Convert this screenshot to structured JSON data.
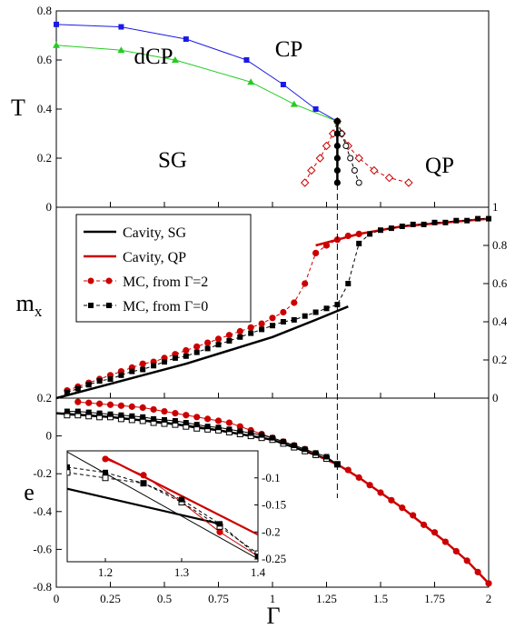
{
  "chart_data": [
    {
      "id": "phase",
      "type": "line",
      "ylabel": "T",
      "xlim": [
        0,
        2
      ],
      "ylim": [
        0,
        0.8
      ],
      "yticks": [
        "0",
        "0.2",
        "0.4",
        "0.6",
        "0.8"
      ],
      "region_labels": [
        "CP",
        "dCP",
        "SG",
        "QP"
      ],
      "series": [
        {
          "key": "blue",
          "color": "#1a1ae6",
          "marker": "square-filled",
          "line": "solid",
          "x": [
            0.0,
            0.3,
            0.6,
            0.88,
            1.05,
            1.2,
            1.3
          ],
          "y": [
            0.745,
            0.735,
            0.685,
            0.6,
            0.5,
            0.4,
            0.35
          ]
        },
        {
          "key": "green",
          "color": "#22cc22",
          "marker": "triangle-filled",
          "line": "solid",
          "x": [
            0.0,
            0.3,
            0.55,
            0.9,
            1.1,
            1.3
          ],
          "y": [
            0.66,
            0.64,
            0.6,
            0.51,
            0.42,
            0.35
          ]
        },
        {
          "key": "red-dashed",
          "color": "#cc0000",
          "marker": "diamond-open",
          "line": "dashed",
          "x": [
            1.15,
            1.18,
            1.22,
            1.25,
            1.28,
            1.3,
            1.32,
            1.35,
            1.4,
            1.47,
            1.54,
            1.63
          ],
          "y": [
            0.1,
            0.15,
            0.2,
            0.25,
            0.3,
            0.35,
            0.3,
            0.25,
            0.2,
            0.15,
            0.12,
            0.1
          ]
        },
        {
          "key": "black-open",
          "color": "#000000",
          "marker": "circle-open",
          "line": "dashed",
          "x": [
            1.3,
            1.32,
            1.34,
            1.36,
            1.38,
            1.4
          ],
          "y": [
            0.35,
            0.3,
            0.25,
            0.2,
            0.15,
            0.1
          ]
        },
        {
          "key": "black-filled",
          "color": "#000000",
          "marker": "circle-filled",
          "line": "solid",
          "x": [
            1.3,
            1.3,
            1.3,
            1.3,
            1.3,
            1.3
          ],
          "y": [
            0.35,
            0.3,
            0.25,
            0.2,
            0.15,
            0.1
          ]
        }
      ]
    },
    {
      "id": "magnetization",
      "type": "line",
      "ylabel": "mx",
      "xlim": [
        0,
        2
      ],
      "ylim": [
        0,
        1
      ],
      "yticks": [
        "0",
        "0.2",
        "0.4",
        "0.6",
        "0.8",
        "1"
      ],
      "series": [
        {
          "key": "cavity-sg",
          "name": "Cavity, SG",
          "color": "#000000",
          "marker": "none",
          "line": "solid",
          "x": [
            0.0,
            0.2,
            0.4,
            0.6,
            0.8,
            1.0,
            1.2,
            1.35
          ],
          "y": [
            0.0,
            0.06,
            0.12,
            0.18,
            0.25,
            0.32,
            0.41,
            0.48
          ]
        },
        {
          "key": "cavity-qp",
          "name": "Cavity, QP",
          "color": "#cc0000",
          "marker": "none",
          "line": "solid",
          "x": [
            1.2,
            1.3,
            1.4,
            1.5,
            1.6,
            1.8,
            2.0
          ],
          "y": [
            0.8,
            0.83,
            0.86,
            0.88,
            0.9,
            0.92,
            0.94
          ]
        },
        {
          "key": "mc-from-2",
          "name": "MC, from Γ=2",
          "color": "#cc0000",
          "marker": "circle-filled",
          "line": "dashed",
          "x": [
            0.05,
            0.1,
            0.15,
            0.2,
            0.25,
            0.3,
            0.35,
            0.4,
            0.45,
            0.5,
            0.55,
            0.6,
            0.65,
            0.7,
            0.75,
            0.8,
            0.85,
            0.9,
            0.95,
            1.0,
            1.05,
            1.1,
            1.15,
            1.2,
            1.25,
            1.3,
            1.35,
            1.4
          ],
          "y": [
            0.04,
            0.06,
            0.08,
            0.1,
            0.12,
            0.14,
            0.16,
            0.18,
            0.19,
            0.21,
            0.23,
            0.25,
            0.27,
            0.29,
            0.31,
            0.33,
            0.35,
            0.37,
            0.39,
            0.42,
            0.45,
            0.5,
            0.6,
            0.76,
            0.8,
            0.83,
            0.85,
            0.86
          ]
        },
        {
          "key": "mc-from-0",
          "name": "MC, from Γ=0",
          "color": "#000000",
          "marker": "square-filled",
          "line": "dashed",
          "x": [
            0.05,
            0.1,
            0.15,
            0.2,
            0.25,
            0.3,
            0.35,
            0.4,
            0.45,
            0.5,
            0.55,
            0.6,
            0.65,
            0.7,
            0.75,
            0.8,
            0.85,
            0.9,
            0.95,
            1.0,
            1.05,
            1.1,
            1.15,
            1.2,
            1.25,
            1.3,
            1.35,
            1.4,
            1.45,
            1.5,
            1.55,
            1.6,
            1.65,
            1.7,
            1.75,
            1.8,
            1.85,
            1.9,
            1.95,
            2.0
          ],
          "y": [
            0.03,
            0.05,
            0.07,
            0.09,
            0.1,
            0.12,
            0.14,
            0.15,
            0.17,
            0.19,
            0.21,
            0.22,
            0.24,
            0.26,
            0.28,
            0.3,
            0.32,
            0.34,
            0.36,
            0.38,
            0.4,
            0.41,
            0.43,
            0.45,
            0.47,
            0.49,
            0.6,
            0.81,
            0.86,
            0.88,
            0.89,
            0.9,
            0.91,
            0.91,
            0.92,
            0.92,
            0.93,
            0.93,
            0.94,
            0.94
          ]
        }
      ]
    },
    {
      "id": "energy",
      "type": "line",
      "ylabel": "e",
      "xlabel": "Γ",
      "xlim": [
        0,
        2
      ],
      "ylim": [
        -0.8,
        0.2
      ],
      "xticks": [
        "0",
        "0.25",
        "0.5",
        "0.75",
        "1",
        "1.25",
        "1.5",
        "1.75",
        "2"
      ],
      "yticks": [
        "0.2",
        "0",
        "-0.2",
        "-0.4",
        "-0.6",
        "-0.8"
      ],
      "series": [
        {
          "key": "e-cavity-sg",
          "color": "#000000",
          "marker": "none",
          "line": "solid",
          "x": [
            0.0,
            0.25,
            0.5,
            0.75,
            1.0,
            1.2,
            1.3
          ],
          "y": [
            0.12,
            0.1,
            0.07,
            0.03,
            -0.02,
            -0.1,
            -0.15
          ]
        },
        {
          "key": "e-cavity-qp",
          "color": "#cc0000",
          "marker": "none",
          "line": "solid",
          "x": [
            1.2,
            1.3,
            1.4,
            1.5,
            1.6,
            1.7,
            1.8,
            1.9,
            2.0
          ],
          "y": [
            -0.1,
            -0.15,
            -0.22,
            -0.3,
            -0.38,
            -0.47,
            -0.56,
            -0.66,
            -0.78
          ]
        },
        {
          "key": "e-mc-red",
          "color": "#cc0000",
          "marker": "circle-filled",
          "line": "solid",
          "x": [
            0.1,
            0.15,
            0.2,
            0.25,
            0.3,
            0.35,
            0.4,
            0.45,
            0.5,
            0.55,
            0.6,
            0.65,
            0.7,
            0.75,
            0.8,
            0.85,
            0.9,
            0.95,
            1.0,
            1.05,
            1.1,
            1.15,
            1.2,
            1.25,
            1.3,
            1.35,
            1.4,
            1.45,
            1.5,
            1.55,
            1.6,
            1.65,
            1.7,
            1.75,
            1.8,
            1.85,
            1.9,
            1.95,
            2.0
          ],
          "y": [
            0.18,
            0.175,
            0.17,
            0.165,
            0.16,
            0.155,
            0.15,
            0.14,
            0.13,
            0.12,
            0.11,
            0.1,
            0.09,
            0.08,
            0.07,
            0.05,
            0.03,
            0.01,
            -0.01,
            -0.03,
            -0.05,
            -0.07,
            -0.1,
            -0.12,
            -0.15,
            -0.18,
            -0.22,
            -0.26,
            -0.3,
            -0.34,
            -0.38,
            -0.42,
            -0.47,
            -0.51,
            -0.56,
            -0.61,
            -0.66,
            -0.72,
            -0.78
          ]
        },
        {
          "key": "e-mc-open",
          "color": "#000000",
          "marker": "square-open",
          "line": "solid",
          "x": [
            0.05,
            0.1,
            0.15,
            0.2,
            0.25,
            0.3,
            0.35,
            0.4,
            0.45,
            0.5,
            0.55,
            0.6,
            0.65,
            0.7,
            0.75,
            0.8,
            0.85,
            0.9,
            0.95,
            1.0,
            1.05,
            1.1,
            1.15,
            1.2,
            1.25,
            1.3
          ],
          "y": [
            0.11,
            0.11,
            0.105,
            0.1,
            0.1,
            0.09,
            0.085,
            0.08,
            0.07,
            0.065,
            0.06,
            0.05,
            0.04,
            0.035,
            0.03,
            0.02,
            0.01,
            0.0,
            -0.01,
            -0.02,
            -0.04,
            -0.06,
            -0.08,
            -0.1,
            -0.12,
            -0.15
          ]
        },
        {
          "key": "e-mc-filled",
          "color": "#000000",
          "marker": "square-filled",
          "line": "solid",
          "x": [
            0.05,
            0.1,
            0.15,
            0.2,
            0.25,
            0.3,
            0.35,
            0.4,
            0.45,
            0.5,
            0.55,
            0.6,
            0.65,
            0.7,
            0.75,
            0.8,
            0.85,
            0.9,
            0.95,
            1.0,
            1.05,
            1.1,
            1.15,
            1.2,
            1.25,
            1.3
          ],
          "y": [
            0.13,
            0.13,
            0.125,
            0.12,
            0.115,
            0.11,
            0.105,
            0.1,
            0.09,
            0.085,
            0.08,
            0.07,
            0.06,
            0.05,
            0.045,
            0.035,
            0.025,
            0.015,
            0.005,
            -0.01,
            -0.03,
            -0.05,
            -0.07,
            -0.09,
            -0.11,
            -0.15
          ]
        }
      ]
    },
    {
      "id": "inset",
      "type": "line",
      "xlim": [
        1.15,
        1.4
      ],
      "ylim": [
        -0.255,
        -0.05
      ],
      "xticks": [
        "1.2",
        "1.3",
        "1.4"
      ],
      "yticks": [
        "-0.1",
        "-0.15",
        "-0.2",
        "-0.25"
      ],
      "series": [
        {
          "key": "in-sg",
          "color": "#000000",
          "marker": "none",
          "line": "solid",
          "width": 2.2,
          "x": [
            1.15,
            1.35
          ],
          "y": [
            -0.12,
            -0.185
          ]
        },
        {
          "key": "in-qp",
          "color": "#cc0000",
          "marker": "none",
          "line": "solid",
          "width": 2.2,
          "x": [
            1.2,
            1.4
          ],
          "y": [
            -0.062,
            -0.205
          ]
        },
        {
          "key": "in-thin",
          "color": "#000000",
          "marker": "none",
          "line": "solid",
          "width": 1,
          "x": [
            1.15,
            1.4
          ],
          "y": [
            -0.052,
            -0.25
          ]
        },
        {
          "key": "in-red",
          "color": "#cc0000",
          "marker": "circle-filled",
          "line": "solid",
          "width": 1,
          "x": [
            1.2,
            1.25,
            1.3,
            1.35,
            1.4
          ],
          "y": [
            -0.065,
            -0.095,
            -0.145,
            -0.2,
            -0.245
          ]
        },
        {
          "key": "in-open",
          "color": "#000000",
          "marker": "square-open",
          "line": "dashed",
          "width": 1,
          "x": [
            1.15,
            1.2,
            1.25,
            1.3,
            1.35,
            1.4
          ],
          "y": [
            -0.09,
            -0.1,
            -0.11,
            -0.145,
            -0.19,
            -0.24
          ]
        },
        {
          "key": "in-filled",
          "color": "#000000",
          "marker": "square-filled",
          "line": "dashed",
          "width": 1,
          "x": [
            1.15,
            1.2,
            1.25,
            1.3,
            1.35,
            1.4
          ],
          "y": [
            -0.08,
            -0.09,
            -0.11,
            -0.14,
            -0.185,
            -0.245
          ]
        }
      ]
    }
  ],
  "vline_x": 1.3
}
